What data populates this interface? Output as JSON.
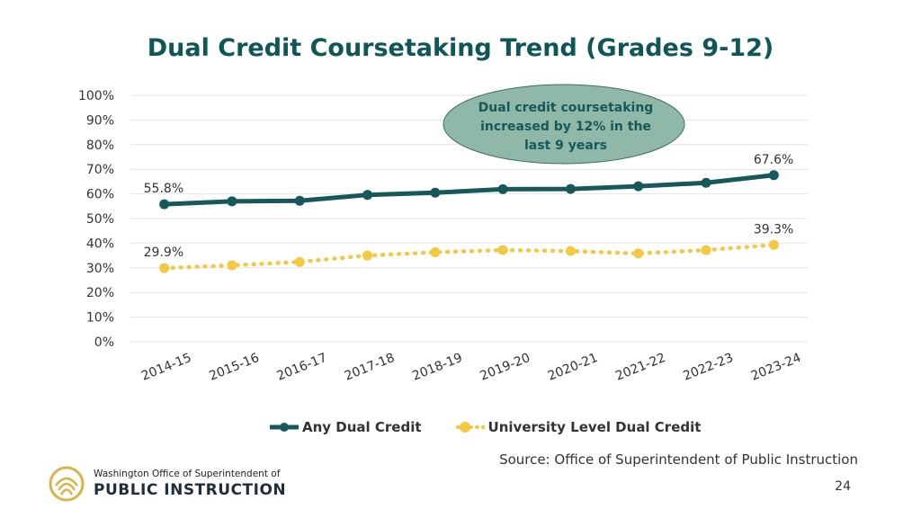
{
  "title": "Dual Credit Coursetaking Trend (Grades 9-12)",
  "chart_data": {
    "type": "line",
    "categories": [
      "2014-15",
      "2015-16",
      "2016-17",
      "2017-18",
      "2018-19",
      "2019-20",
      "2020-21",
      "2021-22",
      "2022-23",
      "2023-24"
    ],
    "ylim": [
      0,
      100
    ],
    "y_ticks": [
      "0%",
      "10%",
      "20%",
      "30%",
      "40%",
      "50%",
      "60%",
      "70%",
      "80%",
      "90%",
      "100%"
    ],
    "series": [
      {
        "name": "Any Dual Credit",
        "color": "#17595a",
        "style": "solid",
        "values": [
          55.8,
          57.0,
          57.2,
          59.6,
          60.5,
          61.9,
          62.0,
          63.1,
          64.5,
          67.6
        ]
      },
      {
        "name": "University Level Dual Credit",
        "color": "#f5c842",
        "style": "dotted",
        "values": [
          29.9,
          31.0,
          32.4,
          35.0,
          36.3,
          37.2,
          36.8,
          35.8,
          37.2,
          39.3
        ]
      }
    ],
    "data_labels": [
      {
        "series": 0,
        "index": 0,
        "text": "55.8%"
      },
      {
        "series": 0,
        "index": 9,
        "text": "67.6%"
      },
      {
        "series": 1,
        "index": 0,
        "text": "29.9%"
      },
      {
        "series": 1,
        "index": 9,
        "text": "39.3%"
      }
    ],
    "annotation": [
      "Dual credit coursetaking",
      "increased by 12% in the",
      "last 9 years"
    ],
    "legend_position": "bottom",
    "grid": true
  },
  "source": "Source: Office of Superintendent of Public Instruction",
  "page_number": "24",
  "logo": {
    "line1": "Washington Office of Superintendent of",
    "line2": "PUBLIC INSTRUCTION",
    "color": "#d9b24a"
  }
}
